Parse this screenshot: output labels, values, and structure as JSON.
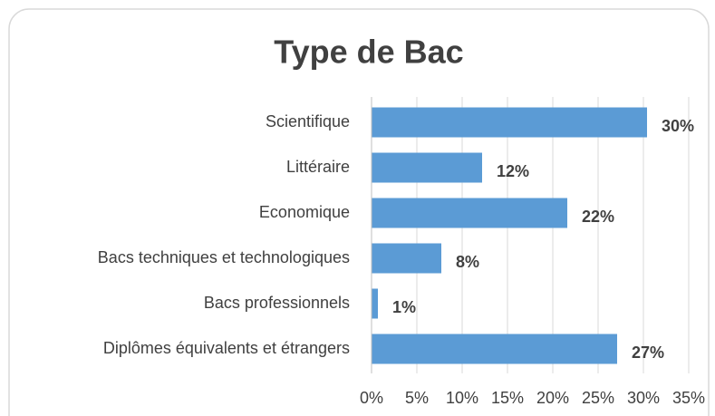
{
  "chart_data": {
    "type": "bar",
    "orientation": "horizontal",
    "title": "Type de Bac",
    "categories": [
      "Scientifique",
      "Littéraire",
      "Economique",
      "Bacs techniques et technologiques",
      "Bacs professionnels",
      "Diplômes équivalents et étrangers"
    ],
    "values": [
      30.4,
      12.2,
      21.6,
      7.7,
      0.7,
      27.1
    ],
    "value_labels": [
      "30%",
      "12%",
      "22%",
      "8%",
      "1%",
      "27%"
    ],
    "color": "#5b9bd5",
    "xlim": [
      0,
      35
    ],
    "xticks": [
      {
        "value": 0,
        "label": "0%"
      },
      {
        "value": 5,
        "label": "5%"
      },
      {
        "value": 10,
        "label": "10%"
      },
      {
        "value": 15,
        "label": "15%"
      },
      {
        "value": 20,
        "label": "20%"
      },
      {
        "value": 25,
        "label": "25%"
      },
      {
        "value": 30,
        "label": "30%"
      },
      {
        "value": 35,
        "label": "35%"
      }
    ],
    "grid": true
  }
}
